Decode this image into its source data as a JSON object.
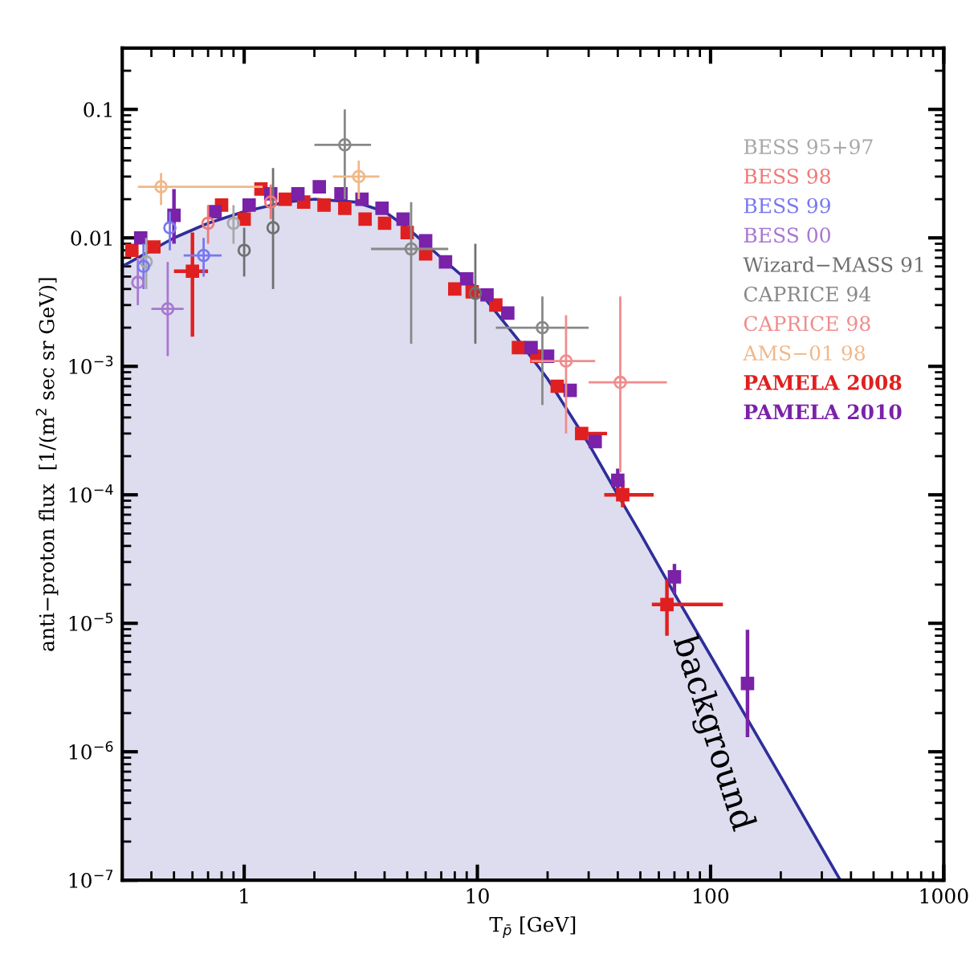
{
  "chart_data": {
    "type": "scatter",
    "xlabel": "T$_{p̄}$ [GeV]",
    "ylabel": "anti−proton flux  [1/(m$^{2}$ sec sr GeV)]",
    "log": "xy",
    "grid": false,
    "legend": "right",
    "xlim": [
      0.3,
      1000
    ],
    "xticks": [
      1,
      10,
      100,
      1000
    ],
    "ylim": [
      1e-07,
      0.3
    ],
    "yticks": [
      {
        "value": 1e-07,
        "label": "10$^{−7}$"
      },
      {
        "value": 1e-06,
        "label": "10$^{−6}$"
      },
      {
        "value": 1e-05,
        "label": "10$^{−5}$"
      },
      {
        "value": 0.0001,
        "label": "10$^{−4}$"
      },
      {
        "value": 0.001,
        "label": "10$^{−3}$"
      },
      0.01,
      0.1
    ],
    "series": [
      {
        "name": "background",
        "type": "area",
        "color": "#2e2e9a",
        "x": [
          0.3,
          0.5,
          0.7,
          1,
          1.5,
          2,
          3,
          4,
          5,
          7,
          10,
          15,
          20,
          30,
          40,
          50,
          70,
          100,
          200,
          360
        ],
        "values": [
          0.006,
          0.01,
          0.013,
          0.016,
          0.019,
          0.02,
          0.019,
          0.016,
          0.012,
          0.007,
          0.004,
          0.0016,
          0.0008,
          0.00025,
          0.0001,
          5e-05,
          1.7e-05,
          5.6e-06,
          6.4e-07,
          1e-07
        ]
      },
      {
        "name": "BESS 95+97",
        "color": "#a8a8a8",
        "marker": "circle",
        "x": [
          0.38,
          0.9
        ],
        "values": [
          0.0065,
          0.013
        ],
        "errors": [
          [
            0.004,
            0.01
          ],
          [
            0.009,
            0.018
          ]
        ]
      },
      {
        "name": "BESS 98",
        "color": "#f07878",
        "marker": "circle",
        "x": [
          0.7,
          1.3
        ],
        "values": [
          0.013,
          0.019
        ],
        "errors": [
          [
            0.009,
            0.018
          ],
          [
            0.014,
            0.026
          ]
        ]
      },
      {
        "name": "BESS 99",
        "color": "#7878f0",
        "marker": "circle",
        "x": [
          0.37,
          0.48,
          0.67
        ],
        "values": [
          0.006,
          0.012,
          0.0073
        ],
        "errors": [
          [
            0.004,
            0.009
          ],
          [
            0.008,
            0.016
          ],
          [
            0.005,
            0.01
          ]
        ],
        "xerrors": [
          null,
          null,
          [
            0.55,
            0.8
          ]
        ]
      },
      {
        "name": "BESS 00",
        "color": "#a878d0",
        "marker": "circle",
        "x": [
          0.35,
          0.47
        ],
        "values": [
          0.0045,
          0.0028
        ],
        "errors": [
          [
            0.003,
            0.007
          ],
          [
            0.0012,
            0.0065
          ]
        ],
        "xerrors": [
          null,
          [
            0.4,
            0.55
          ]
        ]
      },
      {
        "name": "Wizard−MASS 91",
        "color": "#707070",
        "marker": "circle",
        "x": [
          1.0,
          1.33,
          9.8
        ],
        "values": [
          0.008,
          0.012,
          0.0037
        ],
        "errors": [
          [
            0.005,
            0.012
          ],
          [
            0.004,
            0.035
          ],
          [
            0.0015,
            0.009
          ]
        ]
      },
      {
        "name": "CAPRICE 94",
        "color": "#888888",
        "marker": "circle",
        "x": [
          2.7,
          5.2,
          19
        ],
        "values": [
          0.053,
          0.0082,
          0.002
        ],
        "errors": [
          [
            0.02,
            0.1
          ],
          [
            0.0015,
            0.019
          ],
          [
            0.0005,
            0.0035
          ]
        ],
        "xerrors": [
          [
            2.0,
            3.5
          ],
          [
            3.5,
            7.5
          ],
          [
            12,
            30
          ]
        ]
      },
      {
        "name": "CAPRICE 98",
        "color": "#f08c8c",
        "marker": "circle",
        "x": [
          24,
          41
        ],
        "values": [
          0.0011,
          0.00075
        ],
        "errors": [
          [
            0.0003,
            0.0025
          ],
          [
            0.00015,
            0.0035
          ]
        ],
        "xerrors": [
          [
            17,
            32
          ],
          [
            30,
            65
          ]
        ]
      },
      {
        "name": "AMS−01 98",
        "color": "#f0b888",
        "marker": "circle",
        "x": [
          0.44,
          3.1
        ],
        "values": [
          0.025,
          0.03
        ],
        "errors": [
          [
            0.018,
            0.032
          ],
          [
            0.02,
            0.04
          ]
        ],
        "xerrors": [
          [
            0.35,
            1.2
          ],
          [
            2.4,
            3.8
          ]
        ]
      },
      {
        "name": "PAMELA 2008",
        "color": "#e02020",
        "marker": "square",
        "x": [
          0.33,
          0.41,
          0.6,
          0.8,
          1.0,
          1.18,
          1.5,
          1.8,
          2.2,
          2.7,
          3.3,
          4.0,
          5.0,
          6.0,
          8,
          9.5,
          12,
          15,
          18,
          22,
          28,
          42,
          65
        ],
        "values": [
          0.008,
          0.0085,
          0.0055,
          0.018,
          0.014,
          0.024,
          0.02,
          0.019,
          0.018,
          0.017,
          0.014,
          0.013,
          0.011,
          0.0075,
          0.004,
          0.0038,
          0.003,
          0.0014,
          0.0012,
          0.0007,
          0.0003,
          0.0001,
          1.4e-05
        ],
        "errors": [
          null,
          null,
          [
            0.0017,
            0.011
          ],
          null,
          null,
          null,
          null,
          null,
          null,
          null,
          null,
          null,
          null,
          null,
          null,
          null,
          null,
          null,
          null,
          null,
          null,
          [
            8e-05,
            0.00013
          ],
          [
            8e-06,
            2.2e-05
          ]
        ],
        "xerrors": [
          null,
          null,
          [
            0.5,
            0.7
          ],
          null,
          null,
          null,
          null,
          null,
          null,
          null,
          null,
          null,
          null,
          null,
          null,
          null,
          null,
          null,
          null,
          null,
          [
            27,
            36
          ],
          [
            35,
            57
          ],
          [
            56,
            113
          ]
        ]
      },
      {
        "name": "PAMELA 2010",
        "color": "#7a22a8",
        "marker": "square",
        "x": [
          0.36,
          0.5,
          0.75,
          1.05,
          1.3,
          1.7,
          2.1,
          2.6,
          3.2,
          3.9,
          4.8,
          6,
          7.3,
          9,
          11,
          13.5,
          17,
          20,
          25,
          32,
          40,
          70,
          144
        ],
        "values": [
          0.01,
          0.015,
          0.016,
          0.018,
          0.022,
          0.022,
          0.025,
          0.022,
          0.02,
          0.017,
          0.014,
          0.0095,
          0.0065,
          0.0048,
          0.0036,
          0.0026,
          0.0014,
          0.0012,
          0.00065,
          0.00026,
          0.00013,
          2.3e-05,
          3.4e-06
        ],
        "errors": [
          null,
          [
            0.009,
            0.024
          ],
          null,
          null,
          null,
          null,
          null,
          null,
          null,
          null,
          null,
          null,
          null,
          null,
          null,
          null,
          null,
          null,
          null,
          null,
          [
            0.0001,
            0.00016
          ],
          [
            1.7e-05,
            2.9e-05
          ],
          [
            1.3e-06,
            8.9e-06
          ]
        ]
      }
    ]
  }
}
